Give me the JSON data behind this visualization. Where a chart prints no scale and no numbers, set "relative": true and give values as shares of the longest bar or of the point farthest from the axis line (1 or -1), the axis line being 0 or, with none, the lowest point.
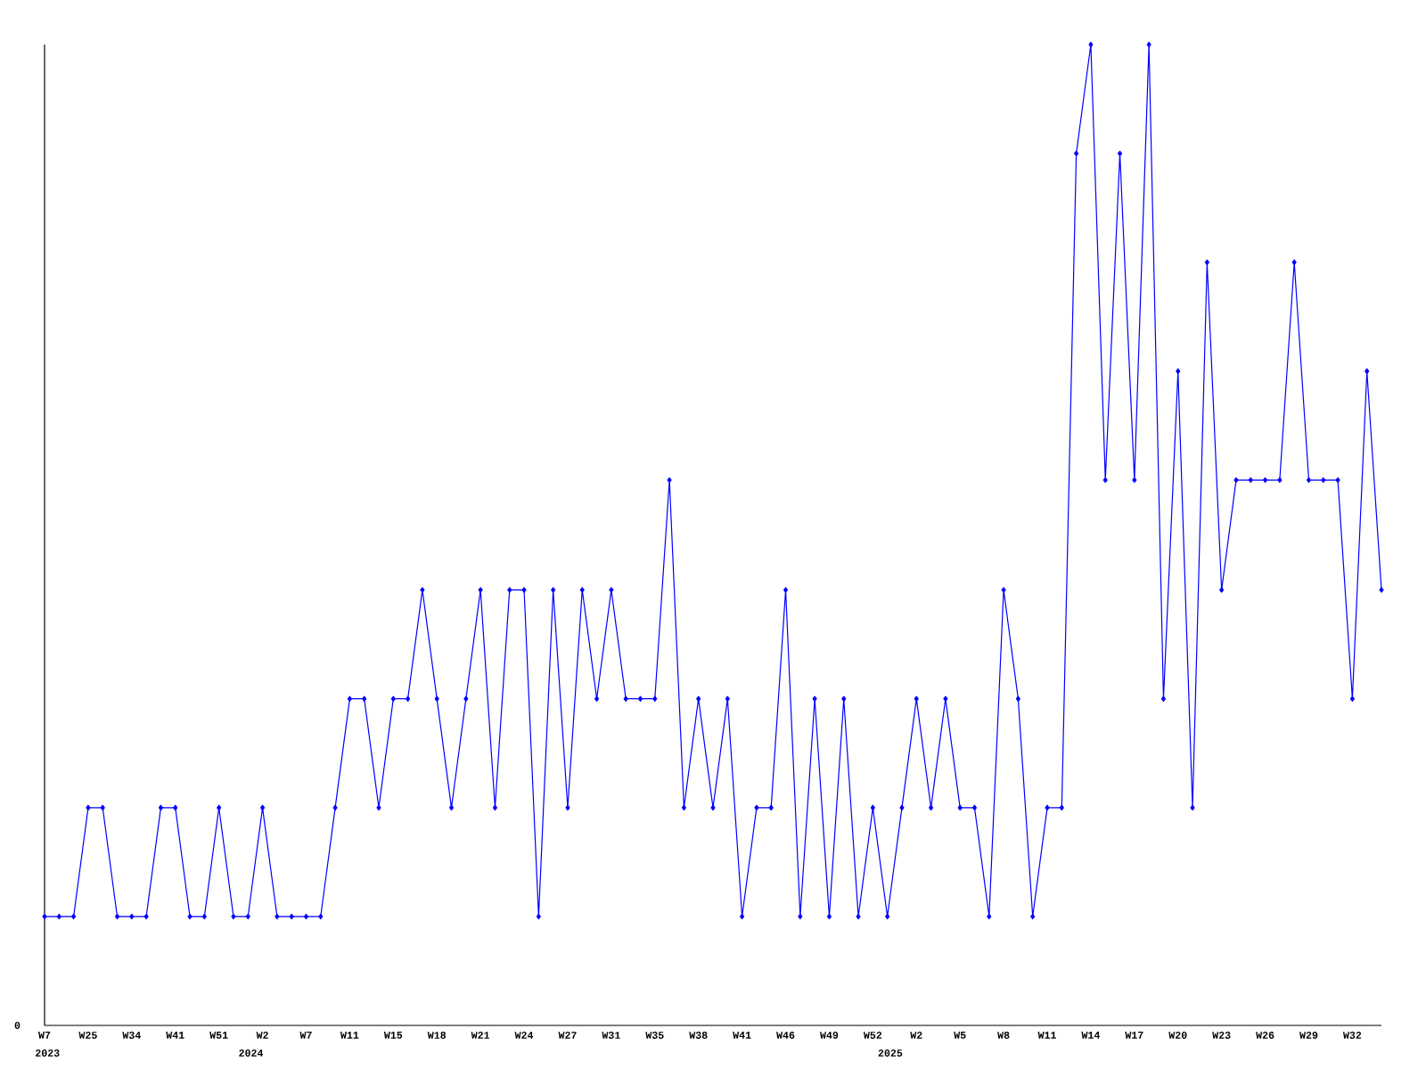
{
  "chart_data": {
    "type": "line",
    "relative": true,
    "tick_labels": "x",
    "marker": "diamond",
    "line_style": "solid",
    "categories": [
      "W7",
      null,
      null,
      "W25",
      null,
      null,
      "W34",
      null,
      null,
      "W41",
      null,
      null,
      "W51",
      null,
      null,
      "W2",
      null,
      null,
      "W7",
      null,
      null,
      "W11",
      null,
      null,
      "W15",
      null,
      null,
      "W18",
      null,
      null,
      "W21",
      null,
      null,
      "W24",
      null,
      null,
      "W27",
      null,
      null,
      "W31",
      null,
      null,
      "W35",
      null,
      null,
      "W38",
      null,
      null,
      "W41",
      null,
      null,
      "W46",
      null,
      null,
      "W49",
      null,
      null,
      "W52",
      null,
      null,
      "W2",
      null,
      null,
      "W5",
      null,
      null,
      "W8",
      null,
      null,
      "W11",
      null,
      null,
      "W14",
      null,
      null,
      "W17",
      null,
      null,
      "W20",
      null,
      null,
      "W23",
      null,
      null,
      "W26",
      null,
      null,
      "W29",
      null,
      null,
      "W32",
      null,
      null
    ],
    "series": [
      {
        "color": "#0000ff",
        "values": [
          0.111,
          0.111,
          0.111,
          0.222,
          0.222,
          0.111,
          0.111,
          0.111,
          0.222,
          0.222,
          0.111,
          0.111,
          0.222,
          0.111,
          0.111,
          0.222,
          0.111,
          0.111,
          0.111,
          0.111,
          0.222,
          0.333,
          0.333,
          0.222,
          0.333,
          0.333,
          0.444,
          0.333,
          0.222,
          0.333,
          0.444,
          0.222,
          0.444,
          0.444,
          0.111,
          0.444,
          0.222,
          0.444,
          0.333,
          0.444,
          0.333,
          0.333,
          0.333,
          0.556,
          0.222,
          0.333,
          0.222,
          0.333,
          0.111,
          0.222,
          0.222,
          0.444,
          0.111,
          0.333,
          0.111,
          0.333,
          0.111,
          0.222,
          0.111,
          0.222,
          0.333,
          0.222,
          0.333,
          0.222,
          0.222,
          0.111,
          0.444,
          0.333,
          0.111,
          0.222,
          0.222,
          0.889,
          1,
          0.556,
          0.889,
          0.556,
          1,
          0.333,
          0.667,
          0.222,
          0.778,
          0.444,
          0.556,
          0.556,
          0.556,
          0.556,
          0.778,
          0.556,
          0.556,
          0.556,
          0.333,
          0.667,
          0.444
        ]
      }
    ],
    "annotations": [
      "0",
      "2023",
      "2024",
      "2025"
    ]
  }
}
